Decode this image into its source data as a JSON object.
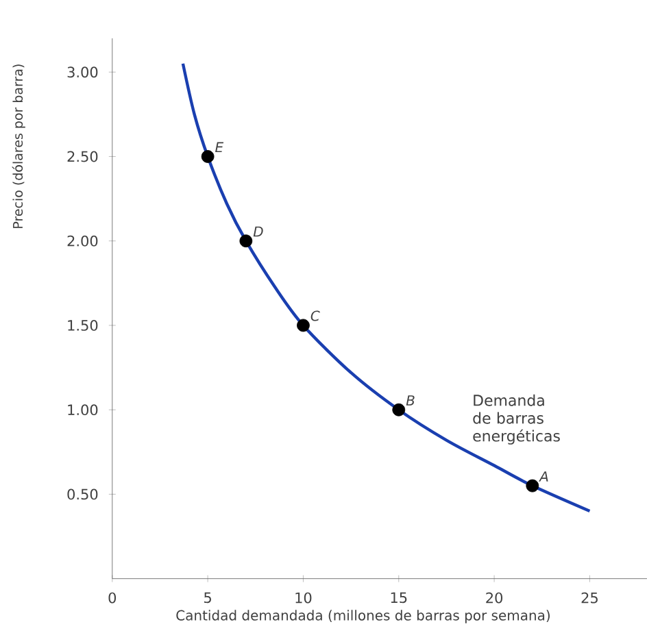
{
  "chart_data": {
    "type": "line",
    "xlabel": "Cantidad demandada (millones de barras por semana)",
    "ylabel": "Precio (dólares por barra)",
    "xlim": [
      0,
      28
    ],
    "ylim": [
      0,
      3.2
    ],
    "xticks": [
      0,
      5,
      10,
      15,
      20,
      25
    ],
    "yticks": [
      {
        "value": 0.5,
        "label": "0.50"
      },
      {
        "value": 1,
        "label": "1.00"
      },
      {
        "value": 1.5,
        "label": "1.50"
      },
      {
        "value": 2,
        "label": "2.00"
      },
      {
        "value": 2.5,
        "label": "2.50"
      },
      {
        "value": 3,
        "label": "3.00"
      }
    ],
    "grid": false,
    "legend": false,
    "series": [
      {
        "name": "Demanda de barras energéticas",
        "type": "line",
        "color": "#1a3fb0",
        "marker": "none",
        "x": [
          3.7,
          4.3,
          5,
          6,
          7,
          8.5,
          10,
          12.5,
          15,
          17.5,
          20,
          22,
          25
        ],
        "values": [
          3.05,
          2.75,
          2.5,
          2.22,
          2.0,
          1.73,
          1.5,
          1.22,
          1.0,
          0.82,
          0.67,
          0.55,
          0.4
        ]
      },
      {
        "type": "scatter",
        "color": "#000000",
        "marker": "circle",
        "x": [
          5,
          7,
          10,
          15,
          22
        ],
        "values": [
          2.5,
          2.0,
          1.5,
          1.0,
          0.55
        ]
      }
    ],
    "annotations": [
      {
        "text": "E",
        "x": 5,
        "y": 2.5
      },
      {
        "text": "D",
        "x": 7,
        "y": 2.0
      },
      {
        "text": "C",
        "x": 10,
        "y": 1.5
      },
      {
        "text": "B",
        "x": 15,
        "y": 1.0
      },
      {
        "text": "A",
        "x": 22,
        "y": 0.55
      }
    ]
  }
}
